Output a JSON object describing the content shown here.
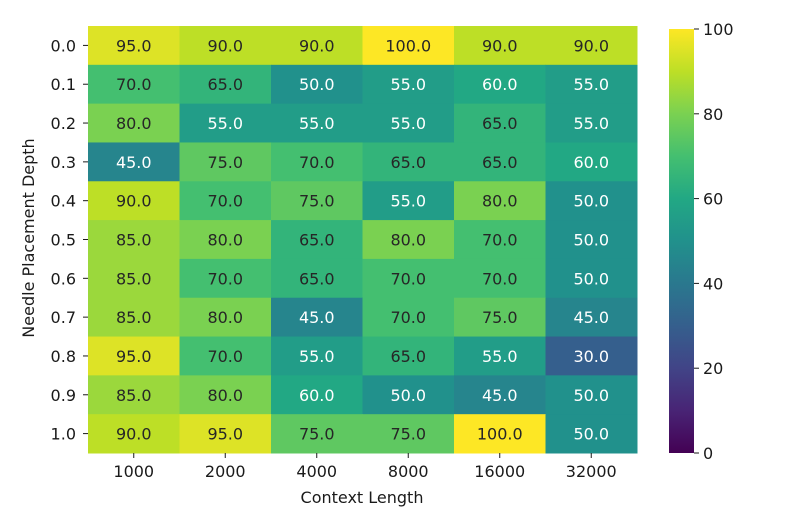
{
  "chart_data": {
    "type": "heatmap",
    "title": "",
    "xlabel": "Context Length",
    "ylabel": "Needle Placement Depth",
    "x_categories": [
      "1000",
      "2000",
      "4000",
      "8000",
      "16000",
      "32000"
    ],
    "y_categories": [
      "0.0",
      "0.1",
      "0.2",
      "0.3",
      "0.4",
      "0.5",
      "0.6",
      "0.7",
      "0.8",
      "0.9",
      "1.0"
    ],
    "values": [
      [
        95.0,
        90.0,
        90.0,
        100.0,
        90.0,
        90.0
      ],
      [
        70.0,
        65.0,
        50.0,
        55.0,
        60.0,
        55.0
      ],
      [
        80.0,
        55.0,
        55.0,
        55.0,
        65.0,
        55.0
      ],
      [
        45.0,
        75.0,
        70.0,
        65.0,
        65.0,
        60.0
      ],
      [
        90.0,
        70.0,
        75.0,
        55.0,
        80.0,
        50.0
      ],
      [
        85.0,
        80.0,
        65.0,
        80.0,
        70.0,
        50.0
      ],
      [
        85.0,
        70.0,
        65.0,
        70.0,
        70.0,
        50.0
      ],
      [
        85.0,
        80.0,
        45.0,
        70.0,
        75.0,
        45.0
      ],
      [
        95.0,
        70.0,
        55.0,
        65.0,
        55.0,
        30.0
      ],
      [
        85.0,
        80.0,
        60.0,
        50.0,
        45.0,
        50.0
      ],
      [
        90.0,
        95.0,
        75.0,
        75.0,
        100.0,
        50.0
      ]
    ],
    "colorbar": {
      "min": 0,
      "max": 100,
      "ticks": [
        0,
        20,
        40,
        60,
        80,
        100
      ],
      "colormap": "viridis"
    },
    "annotation_format": "0.0"
  }
}
